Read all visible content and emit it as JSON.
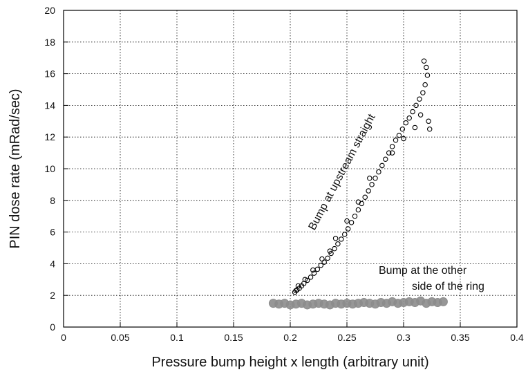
{
  "chart_data": {
    "type": "scatter",
    "title": "",
    "xlabel": "Pressure bump height x length (arbitrary unit)",
    "ylabel": "PIN dose rate (mRad/sec)",
    "xlim": [
      0,
      0.4
    ],
    "ylim": [
      0,
      20
    ],
    "x_ticks": [
      0,
      0.05,
      0.1,
      0.15,
      0.2,
      0.25,
      0.3,
      0.35,
      0.4
    ],
    "x_tick_labels": [
      "0",
      "0.05",
      "0.1",
      "0.15",
      "0.2",
      "0.25",
      "0.3",
      "0.35",
      "0.4"
    ],
    "y_ticks": [
      0,
      2,
      4,
      6,
      8,
      10,
      12,
      14,
      16,
      18,
      20
    ],
    "y_tick_labels": [
      "0",
      "2",
      "4",
      "6",
      "8",
      "10",
      "12",
      "14",
      "16",
      "18",
      "20"
    ],
    "grid": true,
    "grid_style": "dotted",
    "annotations": [
      {
        "text": "Bump at upstream straight",
        "series": "upstream"
      },
      {
        "text": "Bump at the other",
        "series": "other-side"
      },
      {
        "text": "side of the ring",
        "series": "other-side"
      }
    ],
    "series": [
      {
        "id": "upstream",
        "marker": "open-circle",
        "color": "#000000",
        "points": [
          [
            0.204,
            2.2
          ],
          [
            0.206,
            2.35
          ],
          [
            0.208,
            2.45
          ],
          [
            0.21,
            2.6
          ],
          [
            0.212,
            2.75
          ],
          [
            0.215,
            2.95
          ],
          [
            0.218,
            3.15
          ],
          [
            0.221,
            3.4
          ],
          [
            0.224,
            3.65
          ],
          [
            0.227,
            3.9
          ],
          [
            0.23,
            4.1
          ],
          [
            0.233,
            4.35
          ],
          [
            0.236,
            4.65
          ],
          [
            0.239,
            4.95
          ],
          [
            0.242,
            5.25
          ],
          [
            0.245,
            5.55
          ],
          [
            0.248,
            5.85
          ],
          [
            0.251,
            6.2
          ],
          [
            0.254,
            6.6
          ],
          [
            0.257,
            7.0
          ],
          [
            0.26,
            7.4
          ],
          [
            0.263,
            7.8
          ],
          [
            0.266,
            8.2
          ],
          [
            0.269,
            8.6
          ],
          [
            0.272,
            9.0
          ],
          [
            0.275,
            9.4
          ],
          [
            0.278,
            9.8
          ],
          [
            0.281,
            10.2
          ],
          [
            0.284,
            10.6
          ],
          [
            0.287,
            11.0
          ],
          [
            0.29,
            11.4
          ],
          [
            0.293,
            11.8
          ],
          [
            0.296,
            12.1
          ],
          [
            0.299,
            12.5
          ],
          [
            0.302,
            12.9
          ],
          [
            0.305,
            13.2
          ],
          [
            0.308,
            13.6
          ],
          [
            0.311,
            14.0
          ],
          [
            0.314,
            14.4
          ],
          [
            0.317,
            14.8
          ],
          [
            0.319,
            15.3
          ],
          [
            0.321,
            15.9
          ],
          [
            0.318,
            16.8
          ],
          [
            0.32,
            16.4
          ],
          [
            0.322,
            13.0
          ],
          [
            0.31,
            12.6
          ],
          [
            0.315,
            13.4
          ],
          [
            0.323,
            12.5
          ],
          [
            0.3,
            11.9
          ],
          [
            0.29,
            11.0
          ],
          [
            0.27,
            9.4
          ],
          [
            0.26,
            7.9
          ],
          [
            0.25,
            6.7
          ],
          [
            0.24,
            5.6
          ],
          [
            0.235,
            4.8
          ],
          [
            0.228,
            4.3
          ],
          [
            0.22,
            3.6
          ],
          [
            0.213,
            3.0
          ],
          [
            0.207,
            2.6
          ],
          [
            0.205,
            2.3
          ]
        ]
      },
      {
        "id": "other-side",
        "marker": "filled-circle",
        "color": "#8c8c8c",
        "points": [
          [
            0.185,
            1.5
          ],
          [
            0.19,
            1.45
          ],
          [
            0.195,
            1.5
          ],
          [
            0.2,
            1.4
          ],
          [
            0.205,
            1.45
          ],
          [
            0.21,
            1.5
          ],
          [
            0.215,
            1.4
          ],
          [
            0.22,
            1.45
          ],
          [
            0.225,
            1.5
          ],
          [
            0.23,
            1.45
          ],
          [
            0.235,
            1.4
          ],
          [
            0.24,
            1.5
          ],
          [
            0.245,
            1.45
          ],
          [
            0.25,
            1.5
          ],
          [
            0.255,
            1.45
          ],
          [
            0.26,
            1.5
          ],
          [
            0.265,
            1.55
          ],
          [
            0.27,
            1.5
          ],
          [
            0.275,
            1.45
          ],
          [
            0.28,
            1.55
          ],
          [
            0.285,
            1.5
          ],
          [
            0.29,
            1.6
          ],
          [
            0.295,
            1.5
          ],
          [
            0.3,
            1.55
          ],
          [
            0.305,
            1.6
          ],
          [
            0.31,
            1.55
          ],
          [
            0.315,
            1.65
          ],
          [
            0.32,
            1.5
          ],
          [
            0.325,
            1.6
          ],
          [
            0.33,
            1.55
          ],
          [
            0.335,
            1.6
          ]
        ]
      }
    ]
  }
}
